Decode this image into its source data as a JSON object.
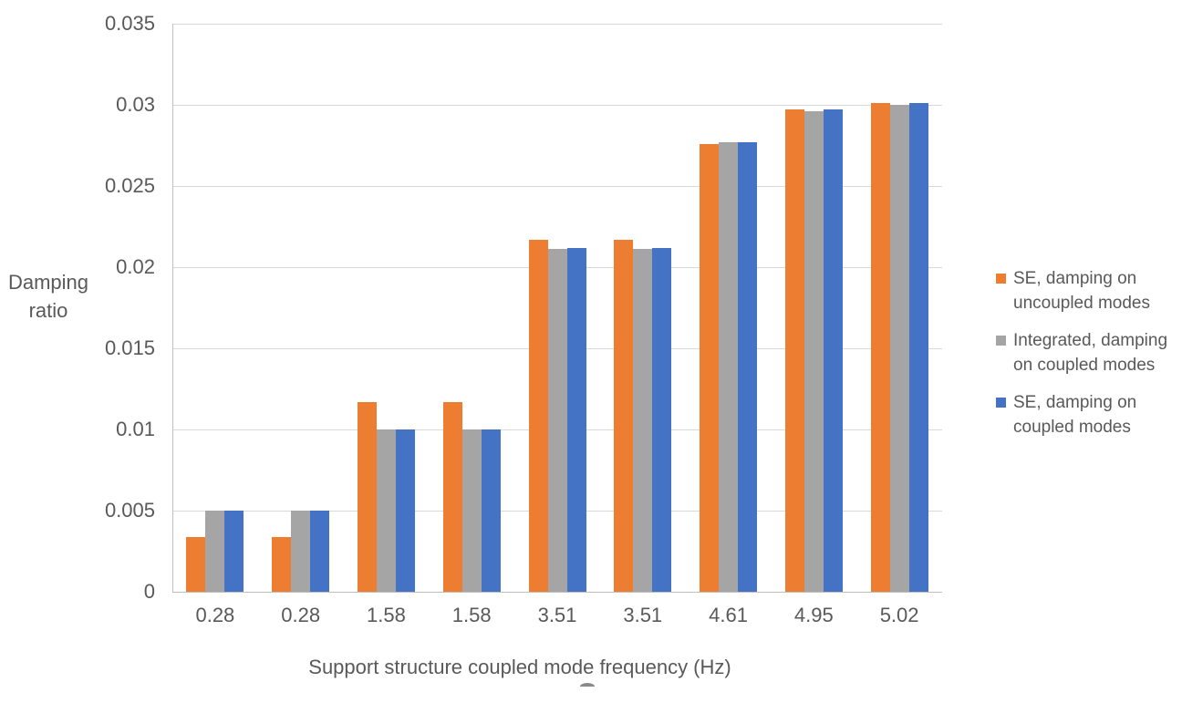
{
  "chart_data": {
    "type": "bar",
    "title": "",
    "xlabel": "Support structure coupled mode frequency (Hz)",
    "ylabel": "Damping\nratio",
    "ylim": [
      0,
      0.035
    ],
    "yticks": [
      "0",
      "0.005",
      "0.01",
      "0.015",
      "0.02",
      "0.025",
      "0.03",
      "0.035"
    ],
    "grid": true,
    "legend_position": "right",
    "categories": [
      "0.28",
      "0.28",
      "1.58",
      "1.58",
      "3.51",
      "3.51",
      "4.61",
      "4.95",
      "5.02"
    ],
    "series": [
      {
        "name": "SE, damping on uncoupled modes",
        "color": "#ED7D31",
        "values": [
          0.0034,
          0.0034,
          0.0117,
          0.0117,
          0.0217,
          0.0217,
          0.0276,
          0.0297,
          0.0301
        ]
      },
      {
        "name": "Integrated, damping on coupled modes",
        "color": "#A5A5A5",
        "values": [
          0.005,
          0.005,
          0.01,
          0.01,
          0.0211,
          0.0211,
          0.0277,
          0.0296,
          0.03
        ]
      },
      {
        "name": "SE, damping on coupled modes",
        "color": "#4472C4",
        "values": [
          0.005,
          0.005,
          0.01,
          0.01,
          0.0212,
          0.0212,
          0.0277,
          0.0297,
          0.0301
        ]
      }
    ],
    "colors": {
      "gridline": "#D9D9D9",
      "axis_line": "#BFBFBF",
      "text": "#595959",
      "background": "#FFFFFF"
    }
  }
}
